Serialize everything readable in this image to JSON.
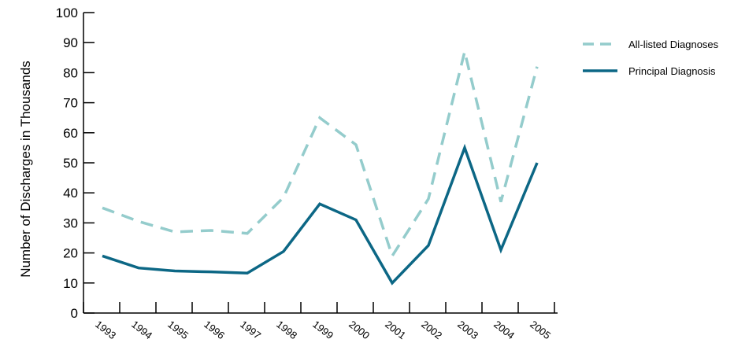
{
  "chart_data": {
    "type": "line",
    "title": "",
    "xlabel": "",
    "ylabel": "Number of Discharges in Thousands",
    "ylim": [
      0,
      100
    ],
    "yticks": [
      0,
      10,
      20,
      30,
      40,
      50,
      60,
      70,
      80,
      90,
      100
    ],
    "categories": [
      "1993",
      "1994",
      "1995",
      "1996",
      "1997",
      "1998",
      "1999",
      "2000",
      "2001",
      "2002",
      "2003",
      "2004",
      "2005"
    ],
    "grid": false,
    "legend": "top-right",
    "series": [
      {
        "name": "All-listed Diagnoses",
        "style": "dashed",
        "color": "#94cccc",
        "values": [
          35,
          30.5,
          27,
          27.5,
          26.5,
          38.5,
          65,
          56,
          19,
          38,
          87,
          37,
          82
        ]
      },
      {
        "name": "Principal Diagnosis",
        "style": "solid",
        "color": "#0c6785",
        "values": [
          19,
          15,
          14,
          13.7,
          13.3,
          20.5,
          36.3,
          31,
          10,
          22.5,
          55,
          21,
          50
        ]
      }
    ]
  }
}
